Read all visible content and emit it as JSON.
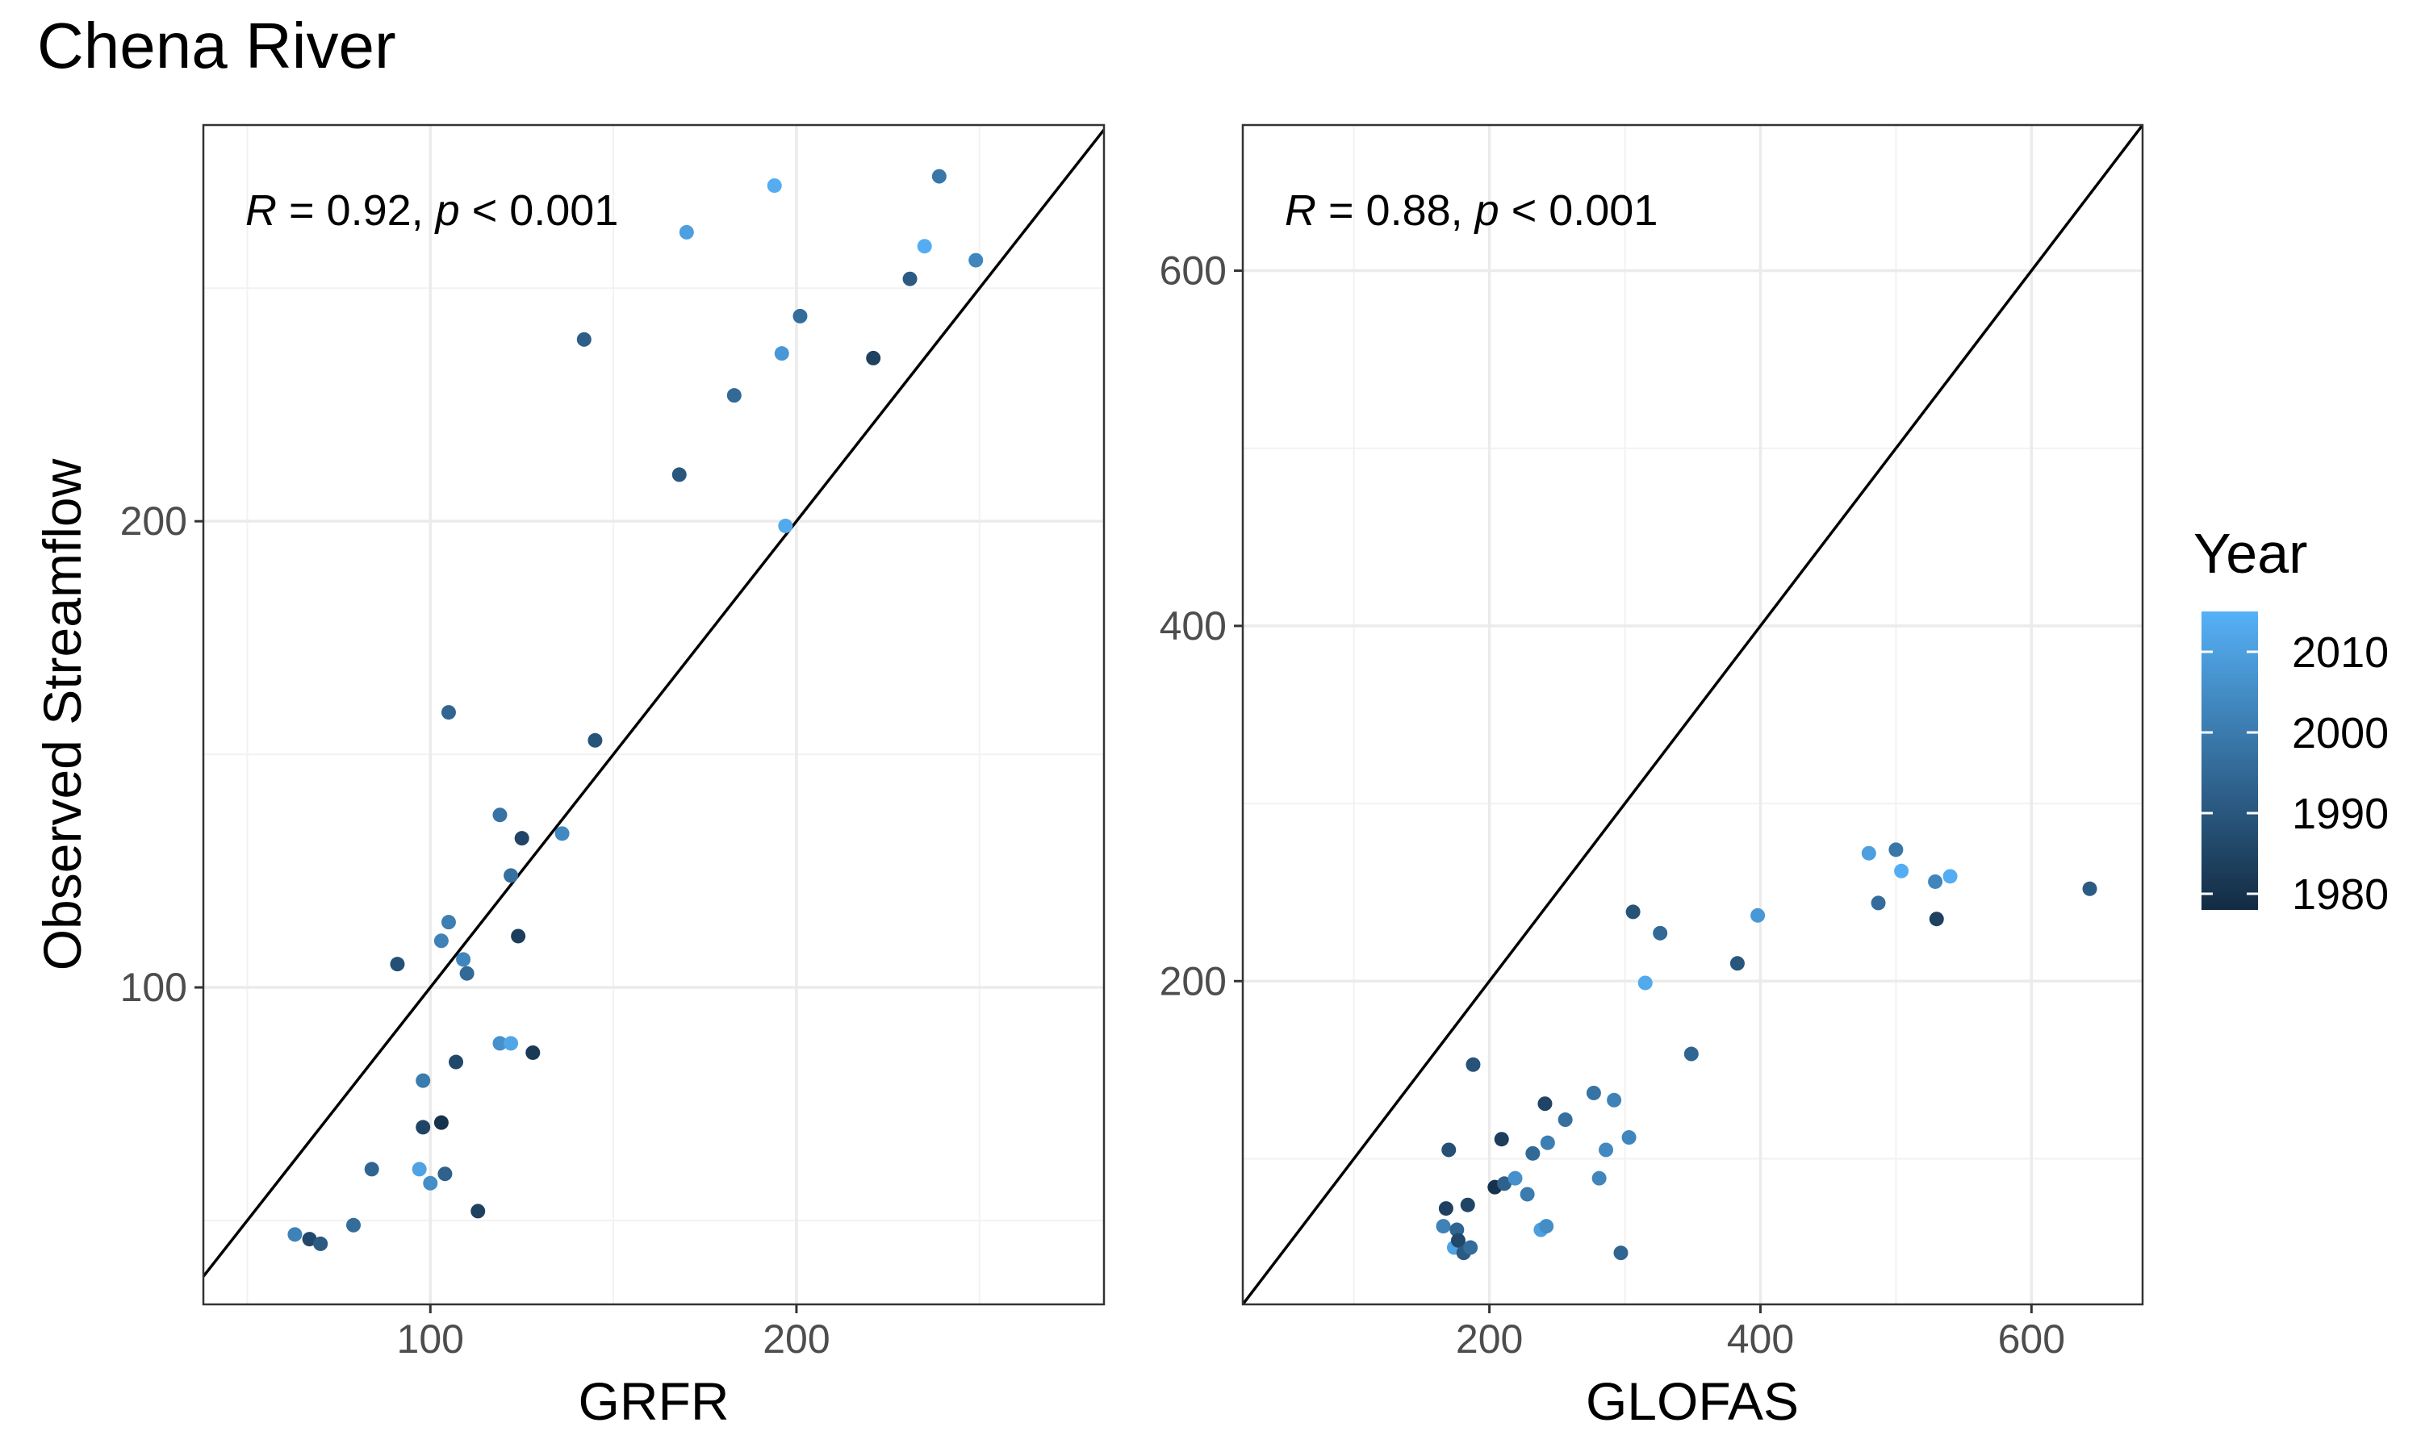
{
  "title": "Chena River",
  "colors": {
    "low": "#132B43",
    "high": "#56B1F7"
  },
  "chart_data": [
    {
      "type": "scatter",
      "xlabel": "GRFR",
      "ylabel": "Observed Streamflow",
      "xlim": [
        38,
        284
      ],
      "ylim": [
        32,
        285
      ],
      "xticks": [
        100,
        200
      ],
      "yticks": [
        100,
        200
      ],
      "annotation": {
        "r_label": "R",
        "r_text": " = 0.92, ",
        "p_label": "p",
        "p_text": " < 0.001"
      },
      "points": [
        {
          "x": 63,
          "y": 47,
          "year": 2002
        },
        {
          "x": 67,
          "y": 46,
          "year": 1986
        },
        {
          "x": 70,
          "y": 45,
          "year": 1991
        },
        {
          "x": 79,
          "y": 49,
          "year": 1996
        },
        {
          "x": 84,
          "y": 61,
          "year": 1994
        },
        {
          "x": 91,
          "y": 105,
          "year": 1988
        },
        {
          "x": 97,
          "y": 61,
          "year": 2011
        },
        {
          "x": 98,
          "y": 80,
          "year": 2000
        },
        {
          "x": 98,
          "y": 70,
          "year": 1985
        },
        {
          "x": 100,
          "y": 58,
          "year": 2005
        },
        {
          "x": 103,
          "y": 71,
          "year": 1980
        },
        {
          "x": 103,
          "y": 110,
          "year": 2002
        },
        {
          "x": 104,
          "y": 60,
          "year": 1993
        },
        {
          "x": 105,
          "y": 159,
          "year": 1994
        },
        {
          "x": 105,
          "y": 114,
          "year": 2001
        },
        {
          "x": 107,
          "y": 84,
          "year": 1986
        },
        {
          "x": 109,
          "y": 106,
          "year": 2003
        },
        {
          "x": 110,
          "y": 103,
          "year": 1995
        },
        {
          "x": 113,
          "y": 52,
          "year": 1984
        },
        {
          "x": 119,
          "y": 88,
          "year": 2006
        },
        {
          "x": 119,
          "y": 137,
          "year": 1998
        },
        {
          "x": 122,
          "y": 124,
          "year": 1997
        },
        {
          "x": 122,
          "y": 88,
          "year": 2012
        },
        {
          "x": 124,
          "y": 111,
          "year": 1983
        },
        {
          "x": 125,
          "y": 132,
          "year": 1985
        },
        {
          "x": 128,
          "y": 86,
          "year": 1982
        },
        {
          "x": 136,
          "y": 133,
          "year": 2004
        },
        {
          "x": 142,
          "y": 239,
          "year": 1992
        },
        {
          "x": 145,
          "y": 153,
          "year": 1989
        },
        {
          "x": 168,
          "y": 210,
          "year": 1990
        },
        {
          "x": 170,
          "y": 262,
          "year": 2010
        },
        {
          "x": 183,
          "y": 227,
          "year": 1995
        },
        {
          "x": 194,
          "y": 272,
          "year": 2014
        },
        {
          "x": 196,
          "y": 236,
          "year": 2008
        },
        {
          "x": 197,
          "y": 199,
          "year": 2013
        },
        {
          "x": 201,
          "y": 244,
          "year": 1996
        },
        {
          "x": 221,
          "y": 235,
          "year": 1984
        },
        {
          "x": 231,
          "y": 252,
          "year": 1991
        },
        {
          "x": 235,
          "y": 259,
          "year": 2014
        },
        {
          "x": 239,
          "y": 274,
          "year": 1999
        },
        {
          "x": 249,
          "y": 256,
          "year": 2003
        }
      ]
    },
    {
      "type": "scatter",
      "xlabel": "GLOFAS",
      "ylabel": "",
      "xlim": [
        18,
        682
      ],
      "ylim": [
        18,
        682
      ],
      "xticks": [
        200,
        400,
        600
      ],
      "yticks": [
        200,
        400,
        600
      ],
      "annotation": {
        "r_label": "R",
        "r_text": " = 0.88, ",
        "p_label": "p",
        "p_text": " < 0.001"
      },
      "points": [
        {
          "x": 166,
          "y": 62,
          "year": 2002
        },
        {
          "x": 168,
          "y": 72,
          "year": 1984
        },
        {
          "x": 170,
          "y": 105,
          "year": 1988
        },
        {
          "x": 174,
          "y": 50,
          "year": 2011
        },
        {
          "x": 176,
          "y": 60,
          "year": 1994
        },
        {
          "x": 177,
          "y": 54,
          "year": 1986
        },
        {
          "x": 181,
          "y": 47,
          "year": 1991
        },
        {
          "x": 184,
          "y": 74,
          "year": 1985
        },
        {
          "x": 186,
          "y": 50,
          "year": 1996
        },
        {
          "x": 188,
          "y": 153,
          "year": 1989
        },
        {
          "x": 204,
          "y": 84,
          "year": 1980
        },
        {
          "x": 209,
          "y": 111,
          "year": 1983
        },
        {
          "x": 211,
          "y": 86,
          "year": 1993
        },
        {
          "x": 219,
          "y": 89,
          "year": 2006
        },
        {
          "x": 228,
          "y": 80,
          "year": 2000
        },
        {
          "x": 232,
          "y": 103,
          "year": 1995
        },
        {
          "x": 238,
          "y": 60,
          "year": 2010
        },
        {
          "x": 241,
          "y": 131,
          "year": 1985
        },
        {
          "x": 242,
          "y": 62,
          "year": 2005
        },
        {
          "x": 243,
          "y": 109,
          "year": 2001
        },
        {
          "x": 256,
          "y": 122,
          "year": 1997
        },
        {
          "x": 277,
          "y": 137,
          "year": 1998
        },
        {
          "x": 281,
          "y": 89,
          "year": 2003
        },
        {
          "x": 286,
          "y": 105,
          "year": 2004
        },
        {
          "x": 292,
          "y": 133,
          "year": 2002
        },
        {
          "x": 297,
          "y": 47,
          "year": 1994
        },
        {
          "x": 303,
          "y": 112,
          "year": 2003
        },
        {
          "x": 306,
          "y": 239,
          "year": 1989
        },
        {
          "x": 315,
          "y": 199,
          "year": 2013
        },
        {
          "x": 326,
          "y": 227,
          "year": 1995
        },
        {
          "x": 349,
          "y": 159,
          "year": 1994
        },
        {
          "x": 383,
          "y": 210,
          "year": 1990
        },
        {
          "x": 398,
          "y": 237,
          "year": 2008
        },
        {
          "x": 480,
          "y": 272,
          "year": 2010
        },
        {
          "x": 487,
          "y": 244,
          "year": 1996
        },
        {
          "x": 500,
          "y": 274,
          "year": 1999
        },
        {
          "x": 504,
          "y": 262,
          "year": 2014
        },
        {
          "x": 529,
          "y": 256,
          "year": 2003
        },
        {
          "x": 530,
          "y": 235,
          "year": 1984
        },
        {
          "x": 540,
          "y": 259,
          "year": 2014
        },
        {
          "x": 643,
          "y": 252,
          "year": 1991
        }
      ]
    }
  ],
  "legend": {
    "title": "Year",
    "range": [
      1978,
      2015
    ],
    "breaks": [
      2010,
      2000,
      1990,
      1980
    ],
    "labels": [
      "2010",
      "2000",
      "1990",
      "1980"
    ]
  }
}
